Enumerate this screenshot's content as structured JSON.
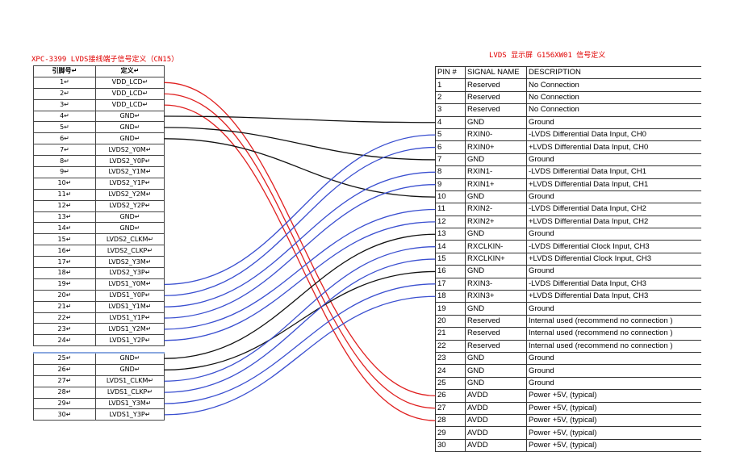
{
  "left_title": "XPC-3399 LVDS接线端子信号定义（CN15）",
  "right_title": "LVDS 显示屏 G156XW01 信号定义",
  "left_header": {
    "pin": "引脚号↵",
    "def": "定义↵"
  },
  "left_rows": [
    {
      "pin": "1↵",
      "def": "VDD_LCD↵"
    },
    {
      "pin": "2↵",
      "def": "VDD_LCD↵"
    },
    {
      "pin": "3↵",
      "def": "VDD_LCD↵"
    },
    {
      "pin": "4↵",
      "def": "GND↵"
    },
    {
      "pin": "5↵",
      "def": "GND↵"
    },
    {
      "pin": "6↵",
      "def": "GND↵"
    },
    {
      "pin": "7↵",
      "def": "LVDS2_Y0M↵"
    },
    {
      "pin": "8↵",
      "def": "LVDS2_Y0P↵"
    },
    {
      "pin": "9↵",
      "def": "LVDS2_Y1M↵"
    },
    {
      "pin": "10↵",
      "def": "LVDS2_Y1P↵"
    },
    {
      "pin": "11↵",
      "def": "LVDS2_Y2M↵"
    },
    {
      "pin": "12↵",
      "def": "LVDS2_Y2P↵"
    },
    {
      "pin": "13↵",
      "def": "GND↵"
    },
    {
      "pin": "14↵",
      "def": "GND↵"
    },
    {
      "pin": "15↵",
      "def": "LVDS2_CLKM↵"
    },
    {
      "pin": "16↵",
      "def": "LVDS2_CLKP↵"
    },
    {
      "pin": "17↵",
      "def": "LVDS2_Y3M↵"
    },
    {
      "pin": "18↵",
      "def": "LVDS2_Y3P↵"
    },
    {
      "pin": "19↵",
      "def": "LVDS1_Y0M↵"
    },
    {
      "pin": "20↵",
      "def": "LVDS1_Y0P↵"
    },
    {
      "pin": "21↵",
      "def": "LVDS1_Y1M↵"
    },
    {
      "pin": "22↵",
      "def": "LVDS1_Y1P↵"
    },
    {
      "pin": "23↵",
      "def": "LVDS1_Y2M↵"
    },
    {
      "pin": "24↵",
      "def": "LVDS1_Y2P↵"
    },
    {
      "pin": "25↵",
      "def": "GND↵"
    },
    {
      "pin": "26↵",
      "def": "GND↵"
    },
    {
      "pin": "27↵",
      "def": "LVDS1_CLKM↵"
    },
    {
      "pin": "28↵",
      "def": "LVDS1_CLKP↵"
    },
    {
      "pin": "29↵",
      "def": "LVDS1_Y3M↵"
    },
    {
      "pin": "30↵",
      "def": "LVDS1_Y3P↵"
    }
  ],
  "right_header": {
    "pin": "PIN #",
    "signal": "SIGNAL NAME",
    "desc": "DESCRIPTION"
  },
  "right_rows": [
    {
      "pin": "1",
      "signal": "Reserved",
      "desc": "No Connection"
    },
    {
      "pin": "2",
      "signal": "Reserved",
      "desc": "No Connection"
    },
    {
      "pin": "3",
      "signal": "Reserved",
      "desc": "No Connection"
    },
    {
      "pin": "4",
      "signal": "GND",
      "desc": "Ground"
    },
    {
      "pin": "5",
      "signal": "RXIN0-",
      "desc": "-LVDS Differential Data Input, CH0"
    },
    {
      "pin": "6",
      "signal": "RXIN0+",
      "desc": "+LVDS Differential Data Input, CH0"
    },
    {
      "pin": "7",
      "signal": "GND",
      "desc": "Ground"
    },
    {
      "pin": "8",
      "signal": "RXIN1-",
      "desc": "-LVDS Differential Data Input, CH1"
    },
    {
      "pin": "9",
      "signal": "RXIN1+",
      "desc": "+LVDS Differential Data Input, CH1"
    },
    {
      "pin": "10",
      "signal": "GND",
      "desc": "Ground"
    },
    {
      "pin": "11",
      "signal": "RXIN2-",
      "desc": "-LVDS Differential Data Input, CH2"
    },
    {
      "pin": "12",
      "signal": "RXIN2+",
      "desc": "+LVDS Differential Data Input, CH2"
    },
    {
      "pin": "13",
      "signal": "GND",
      "desc": "Ground"
    },
    {
      "pin": "14",
      "signal": "RXCLKIN-",
      "desc": "-LVDS Differential Clock Input, CH3"
    },
    {
      "pin": "15",
      "signal": "RXCLKIN+",
      "desc": "+LVDS Differential Clock Input, CH3"
    },
    {
      "pin": "16",
      "signal": "GND",
      "desc": "Ground"
    },
    {
      "pin": "17",
      "signal": "RXIN3-",
      "desc": "-LVDS Differential Data Input, CH3"
    },
    {
      "pin": "18",
      "signal": "RXIN3+",
      "desc": "+LVDS Differential Data Input, CH3"
    },
    {
      "pin": "19",
      "signal": "GND",
      "desc": "Ground"
    },
    {
      "pin": "20",
      "signal": "Reserved",
      "desc": "Internal used (recommend no connection )"
    },
    {
      "pin": "21",
      "signal": "Reserved",
      "desc": "Internal used (recommend no connection )"
    },
    {
      "pin": "22",
      "signal": "Reserved",
      "desc": "Internal used (recommend no connection )"
    },
    {
      "pin": "23",
      "signal": "GND",
      "desc": "Ground"
    },
    {
      "pin": "24",
      "signal": "GND",
      "desc": "Ground"
    },
    {
      "pin": "25",
      "signal": "GND",
      "desc": "Ground"
    },
    {
      "pin": "26",
      "signal": "AVDD",
      "desc": "Power +5V, (typical)"
    },
    {
      "pin": "27",
      "signal": "AVDD",
      "desc": "Power +5V, (typical)"
    },
    {
      "pin": "28",
      "signal": "AVDD",
      "desc": "Power +5V, (typical)"
    },
    {
      "pin": "29",
      "signal": "AVDD",
      "desc": "Power +5V, (typical)"
    },
    {
      "pin": "30",
      "signal": "AVDD",
      "desc": "Power +5V, (typical)"
    }
  ],
  "colors": {
    "power": "#e02020",
    "ground": "#111111",
    "signal": "#3a4fd0"
  },
  "connections": [
    {
      "from": 1,
      "to": 26,
      "kind": "power"
    },
    {
      "from": 2,
      "to": 27,
      "kind": "power"
    },
    {
      "from": 3,
      "to": 28,
      "kind": "power"
    },
    {
      "from": 4,
      "to": 4,
      "kind": "ground"
    },
    {
      "from": 5,
      "to": 7,
      "kind": "ground"
    },
    {
      "from": 6,
      "to": 10,
      "kind": "ground"
    },
    {
      "from": 19,
      "to": 5,
      "kind": "signal"
    },
    {
      "from": 20,
      "to": 6,
      "kind": "signal"
    },
    {
      "from": 21,
      "to": 8,
      "kind": "signal"
    },
    {
      "from": 22,
      "to": 9,
      "kind": "signal"
    },
    {
      "from": 23,
      "to": 11,
      "kind": "signal"
    },
    {
      "from": 24,
      "to": 12,
      "kind": "signal"
    },
    {
      "from": 25,
      "to": 13,
      "kind": "ground"
    },
    {
      "from": 26,
      "to": 16,
      "kind": "ground"
    },
    {
      "from": 27,
      "to": 14,
      "kind": "signal"
    },
    {
      "from": 28,
      "to": 15,
      "kind": "signal"
    },
    {
      "from": 29,
      "to": 17,
      "kind": "signal"
    },
    {
      "from": 30,
      "to": 18,
      "kind": "signal"
    }
  ]
}
